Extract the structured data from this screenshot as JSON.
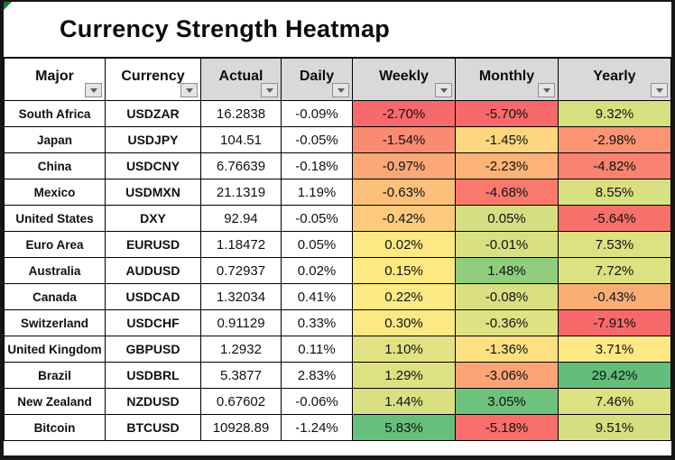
{
  "title": "Currency Strength Heatmap",
  "columns": [
    {
      "label": "Major",
      "shaded": false
    },
    {
      "label": "Currency",
      "shaded": false
    },
    {
      "label": "Actual",
      "shaded": true
    },
    {
      "label": "Daily",
      "shaded": true
    },
    {
      "label": "Weekly",
      "shaded": true
    },
    {
      "label": "Monthly",
      "shaded": true
    },
    {
      "label": "Yearly",
      "shaded": true
    }
  ],
  "rows": [
    {
      "major": "South Africa",
      "currency": "USDZAR",
      "actual": "16.2838",
      "daily": "-0.09%",
      "weekly": {
        "value": "-2.70%",
        "color": "#F8696B"
      },
      "monthly": {
        "value": "-5.70%",
        "color": "#F8696B"
      },
      "yearly": {
        "value": "9.32%",
        "color": "#D7E081"
      }
    },
    {
      "major": "Japan",
      "currency": "USDJPY",
      "actual": "104.51",
      "daily": "-0.05%",
      "weekly": {
        "value": "-1.54%",
        "color": "#F98C70"
      },
      "monthly": {
        "value": "-1.45%",
        "color": "#FDD67F"
      },
      "yearly": {
        "value": "-2.98%",
        "color": "#FA9473"
      }
    },
    {
      "major": "China",
      "currency": "USDCNY",
      "actual": "6.76639",
      "daily": "-0.18%",
      "weekly": {
        "value": "-0.97%",
        "color": "#FBA876"
      },
      "monthly": {
        "value": "-2.23%",
        "color": "#FBB378"
      },
      "yearly": {
        "value": "-4.82%",
        "color": "#F98270"
      }
    },
    {
      "major": "Mexico",
      "currency": "USDMXN",
      "actual": "21.1319",
      "daily": "1.19%",
      "weekly": {
        "value": "-0.63%",
        "color": "#FCC07B"
      },
      "monthly": {
        "value": "-4.68%",
        "color": "#F97A6D"
      },
      "yearly": {
        "value": "8.55%",
        "color": "#D9E081"
      }
    },
    {
      "major": "United States",
      "currency": "DXY",
      "actual": "92.94",
      "daily": "-0.05%",
      "weekly": {
        "value": "-0.42%",
        "color": "#FCCA7D"
      },
      "monthly": {
        "value": "0.05%",
        "color": "#D5DF81"
      },
      "yearly": {
        "value": "-5.64%",
        "color": "#F8706C"
      }
    },
    {
      "major": "Euro Area",
      "currency": "EURUSD",
      "actual": "1.18472",
      "daily": "0.05%",
      "weekly": {
        "value": "0.02%",
        "color": "#FEE883"
      },
      "monthly": {
        "value": "-0.01%",
        "color": "#D8E081"
      },
      "yearly": {
        "value": "7.53%",
        "color": "#DDE182"
      }
    },
    {
      "major": "Australia",
      "currency": "AUDUSD",
      "actual": "0.72937",
      "daily": "0.02%",
      "weekly": {
        "value": "0.15%",
        "color": "#FEE983"
      },
      "monthly": {
        "value": "1.48%",
        "color": "#90CE7E"
      },
      "yearly": {
        "value": "7.72%",
        "color": "#DCE182"
      }
    },
    {
      "major": "Canada",
      "currency": "USDCAD",
      "actual": "1.32034",
      "daily": "0.41%",
      "weekly": {
        "value": "0.22%",
        "color": "#FEEA84"
      },
      "monthly": {
        "value": "-0.08%",
        "color": "#DAE082"
      },
      "yearly": {
        "value": "-0.43%",
        "color": "#FBAD76"
      }
    },
    {
      "major": "Switzerland",
      "currency": "USDCHF",
      "actual": "0.91129",
      "daily": "0.33%",
      "weekly": {
        "value": "0.30%",
        "color": "#FDE983"
      },
      "monthly": {
        "value": "-0.36%",
        "color": "#DFE282"
      },
      "yearly": {
        "value": "-7.91%",
        "color": "#F8696B"
      }
    },
    {
      "major": "United Kingdom",
      "currency": "GBPUSD",
      "actual": "1.2932",
      "daily": "0.11%",
      "weekly": {
        "value": "1.10%",
        "color": "#E2E283"
      },
      "monthly": {
        "value": "-1.36%",
        "color": "#FEDF81"
      },
      "yearly": {
        "value": "3.71%",
        "color": "#FEE883"
      }
    },
    {
      "major": "Brazil",
      "currency": "USDBRL",
      "actual": "5.3877",
      "daily": "2.83%",
      "weekly": {
        "value": "1.29%",
        "color": "#DEE182"
      },
      "monthly": {
        "value": "-3.06%",
        "color": "#FBA475"
      },
      "yearly": {
        "value": "29.42%",
        "color": "#63BE7B"
      }
    },
    {
      "major": "New Zealand",
      "currency": "NZDUSD",
      "actual": "0.67602",
      "daily": "-0.06%",
      "weekly": {
        "value": "1.44%",
        "color": "#DAE081"
      },
      "monthly": {
        "value": "3.05%",
        "color": "#6FC27C"
      },
      "yearly": {
        "value": "7.46%",
        "color": "#DDE182"
      }
    },
    {
      "major": "Bitcoin",
      "currency": "BTCUSD",
      "actual": "10928.89",
      "daily": "-1.24%",
      "weekly": {
        "value": "5.83%",
        "color": "#66BF7B"
      },
      "monthly": {
        "value": "-5.18%",
        "color": "#F86E6D"
      },
      "yearly": {
        "value": "9.51%",
        "color": "#D5DF81"
      }
    }
  ],
  "icons": {
    "filter_dropdown": "chevron-down",
    "corner_flag_color": "#1E7B34"
  },
  "colors": {
    "header_shaded": "#D9D9D9",
    "header_plain": "#FFFFFF",
    "grid": "#000000"
  },
  "chart_data": {
    "type": "heatmap",
    "title": "Currency Strength Heatmap",
    "columns": [
      "Major",
      "Currency",
      "Actual",
      "Daily",
      "Weekly",
      "Monthly",
      "Yearly"
    ],
    "heat_columns": [
      "Weekly",
      "Monthly",
      "Yearly"
    ],
    "units": "Daily/Weekly/Monthly/Yearly values are percent change",
    "rows": [
      [
        "South Africa",
        "USDZAR",
        16.2838,
        -0.09,
        -2.7,
        -5.7,
        9.32
      ],
      [
        "Japan",
        "USDJPY",
        104.51,
        -0.05,
        -1.54,
        -1.45,
        -2.98
      ],
      [
        "China",
        "USDCNY",
        6.76639,
        -0.18,
        -0.97,
        -2.23,
        -4.82
      ],
      [
        "Mexico",
        "USDMXN",
        21.1319,
        1.19,
        -0.63,
        -4.68,
        8.55
      ],
      [
        "United States",
        "DXY",
        92.94,
        -0.05,
        -0.42,
        0.05,
        -5.64
      ],
      [
        "Euro Area",
        "EURUSD",
        1.18472,
        0.05,
        0.02,
        -0.01,
        7.53
      ],
      [
        "Australia",
        "AUDUSD",
        0.72937,
        0.02,
        0.15,
        1.48,
        7.72
      ],
      [
        "Canada",
        "USDCAD",
        1.32034,
        0.41,
        0.22,
        -0.08,
        -0.43
      ],
      [
        "Switzerland",
        "USDCHF",
        0.91129,
        0.33,
        0.3,
        -0.36,
        -7.91
      ],
      [
        "United Kingdom",
        "GBPUSD",
        1.2932,
        0.11,
        1.1,
        -1.36,
        3.71
      ],
      [
        "Brazil",
        "USDBRL",
        5.3877,
        2.83,
        1.29,
        -3.06,
        29.42
      ],
      [
        "New Zealand",
        "NZDUSD",
        0.67602,
        -0.06,
        1.44,
        3.05,
        7.46
      ],
      [
        "Bitcoin",
        "BTCUSD",
        10928.89,
        -1.24,
        5.83,
        -5.18,
        9.51
      ]
    ],
    "color_scale": {
      "min": "#F8696B",
      "mid": "#FFEB84",
      "max": "#63BE7B"
    },
    "legend_position": "none",
    "grid": true
  }
}
